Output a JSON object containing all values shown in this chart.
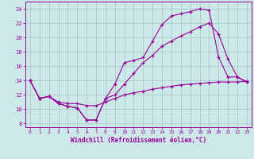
{
  "background_color": "#cce8e8",
  "grid_color": "#aacccc",
  "line_color": "#990099",
  "marker": "+",
  "xlabel": "Windchill (Refroidissement éolien,°C)",
  "ylim": [
    7.5,
    25
  ],
  "xlim": [
    -0.5,
    23.5
  ],
  "yticks": [
    8,
    10,
    12,
    14,
    16,
    18,
    20,
    22,
    24
  ],
  "xticks": [
    0,
    1,
    2,
    3,
    4,
    5,
    6,
    7,
    8,
    9,
    10,
    11,
    12,
    13,
    14,
    15,
    16,
    17,
    18,
    19,
    20,
    21,
    22,
    23
  ],
  "curve1_x": [
    0,
    1,
    2,
    3,
    4,
    5,
    6,
    7,
    8,
    9,
    10,
    11,
    12,
    13,
    14,
    15,
    16,
    17,
    18,
    19,
    20,
    21,
    22,
    23
  ],
  "curve1_y": [
    14,
    11.5,
    11.8,
    10.8,
    10.4,
    10.2,
    8.5,
    8.5,
    11.5,
    13.5,
    16.5,
    16.8,
    17.2,
    19.5,
    21.8,
    23.0,
    23.3,
    23.6,
    24.0,
    23.8,
    17.3,
    14.5,
    14.5,
    13.8
  ],
  "curve2_x": [
    0,
    1,
    2,
    3,
    4,
    5,
    6,
    7,
    8,
    9,
    10,
    11,
    12,
    13,
    14,
    15,
    16,
    17,
    18,
    19,
    20,
    21,
    22,
    23
  ],
  "curve2_y": [
    14,
    11.5,
    11.8,
    10.8,
    10.4,
    10.2,
    8.5,
    8.5,
    11.5,
    12.0,
    13.5,
    15.0,
    16.5,
    17.5,
    18.8,
    19.5,
    20.2,
    20.8,
    21.5,
    22.0,
    20.5,
    17.0,
    14.5,
    13.8
  ],
  "curve3_x": [
    0,
    1,
    2,
    3,
    4,
    5,
    6,
    7,
    8,
    9,
    10,
    11,
    12,
    13,
    14,
    15,
    16,
    17,
    18,
    19,
    20,
    21,
    22,
    23
  ],
  "curve3_y": [
    14,
    11.5,
    11.8,
    11.0,
    10.8,
    10.8,
    10.5,
    10.5,
    11.0,
    11.5,
    12.0,
    12.3,
    12.5,
    12.8,
    13.0,
    13.2,
    13.4,
    13.5,
    13.6,
    13.7,
    13.8,
    13.8,
    13.8,
    13.9
  ]
}
